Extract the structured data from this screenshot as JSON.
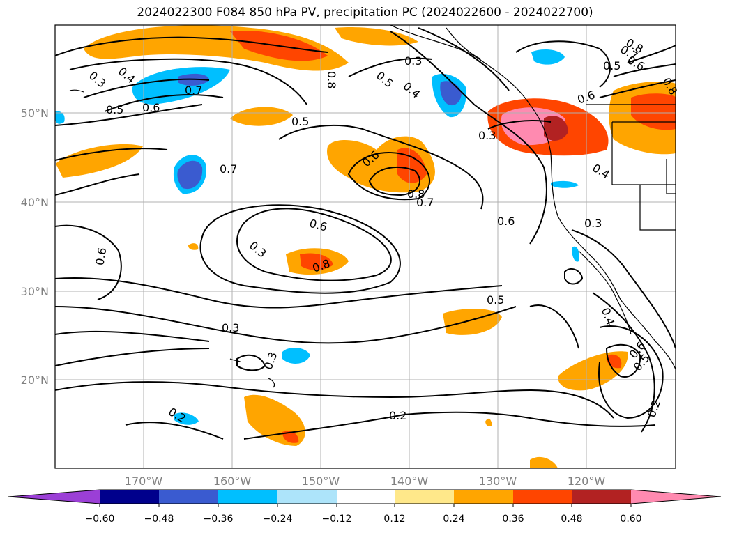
{
  "title": "2024022300 F084 850 hPa PV, precipitation PC (2024022600 - 2024022700)",
  "lat_labels": [
    "50°N",
    "40°N",
    "30°N",
    "20°N"
  ],
  "lon_labels": [
    "170°W",
    "160°W",
    "150°W",
    "140°W",
    "130°W",
    "120°W"
  ],
  "contour_labels": [
    "0.3",
    "0.4",
    "0.5",
    "0.6",
    "0.7",
    "0.3",
    "0.4",
    "0.5",
    "0.8",
    "0.3",
    "0.8",
    "0.6",
    "0.7",
    "0.5",
    "0.6",
    "0.8",
    "0.7",
    "0.6",
    "0.7",
    "0.6",
    "0.8",
    "0.6",
    "0.3",
    "0.5",
    "0.3",
    "0.3",
    "0.4",
    "0.5",
    "0.6",
    "0.2",
    "0.2",
    "0.2",
    "0.4",
    "0.6",
    "0.8",
    "0.5",
    "0.3"
  ],
  "colorbar": {
    "ticks": [
      "−0.60",
      "−0.48",
      "−0.36",
      "−0.24",
      "−0.12",
      "0.12",
      "0.24",
      "0.36",
      "0.48",
      "0.60"
    ],
    "colors": [
      "#9b3fd6",
      "#00008c",
      "#3a5bd0",
      "#00bfff",
      "#ade4fa",
      "#ffffff",
      "#ffe88a",
      "#ffa500",
      "#ff4500",
      "#b22222",
      "#ff8ab0"
    ]
  }
}
